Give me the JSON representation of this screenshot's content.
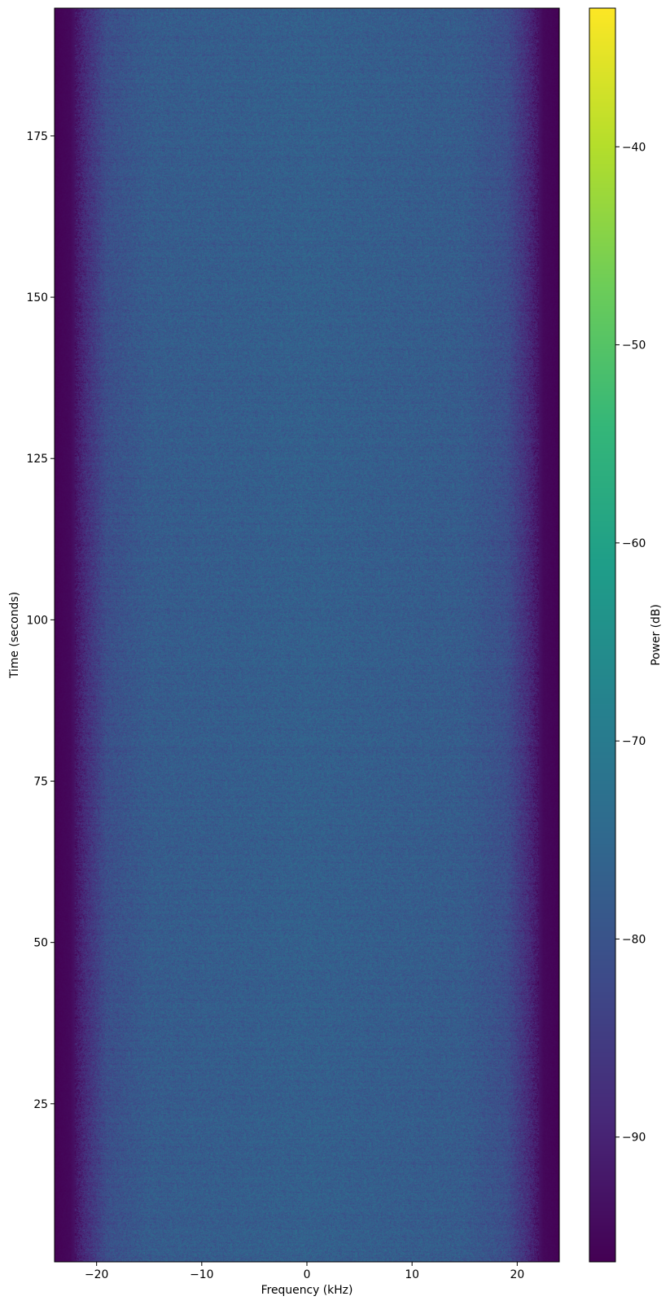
{
  "chart_data": {
    "type": "heatmap",
    "title": "",
    "xlabel": "Frequency (kHz)",
    "ylabel": "Time (seconds)",
    "xlim": [
      -24,
      24
    ],
    "ylim": [
      0.5,
      194.8
    ],
    "xticks": [
      -20,
      -10,
      0,
      10,
      20
    ],
    "xtick_labels": [
      "−20",
      "−10",
      "0",
      "10",
      "20"
    ],
    "yticks": [
      25,
      50,
      75,
      100,
      125,
      150,
      175
    ],
    "ytick_labels": [
      "25",
      "50",
      "75",
      "100",
      "125",
      "150",
      "175"
    ],
    "colorbar": {
      "label": "Power (dB)",
      "colormap": "viridis",
      "range": [
        -96.3,
        -33
      ],
      "ticks": [
        -90,
        -80,
        -70,
        -60,
        -50,
        -40
      ],
      "tick_labels": [
        "−90",
        "−80",
        "−70",
        "−60",
        "−50",
        "−40"
      ]
    },
    "mean_power_profile_db": {
      "frequency_khz": [
        -24,
        -22.5,
        -21,
        -19,
        -15,
        0,
        15,
        19,
        21,
        22.5,
        24
      ],
      "power_db": [
        -96,
        -95,
        -88,
        -81,
        -78,
        -77,
        -78,
        -81,
        -88,
        -95,
        -96
      ]
    },
    "grid": false
  }
}
